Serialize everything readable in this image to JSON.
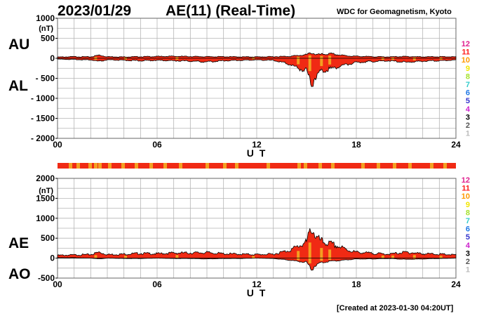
{
  "header": {
    "date": "2023/01/29",
    "title": "AE(11) (Real-Time)",
    "source": "WDC for Geomagnetism, Kyoto"
  },
  "footer": {
    "created": "[Created at 2023-01-30 04:20UT]"
  },
  "legend": {
    "labels": [
      "12",
      "11",
      "10",
      "9",
      "8",
      "7",
      "6",
      "5",
      "4",
      "3",
      "2",
      "1"
    ],
    "colors": [
      "#e0208f",
      "#ff1a1a",
      "#ff9900",
      "#f2e600",
      "#a6e22e",
      "#33cccc",
      "#1f78e6",
      "#3333cc",
      "#cc22cc",
      "#000000",
      "#555555",
      "#bbbbbb"
    ]
  },
  "colors": {
    "band_red": "#f02a14",
    "band_orange": "#f3a021",
    "fill_red": "#f02a14",
    "outline": "#000000"
  },
  "chart_data": [
    {
      "type": "area",
      "labels": {
        "upper": "AU",
        "lower": "AL"
      },
      "ylabel": "(nT)",
      "xlabel": "U T",
      "xlim": [
        0,
        24
      ],
      "ylim": [
        -2000,
        1000
      ],
      "xticks": [
        "00",
        "06",
        "12",
        "18",
        "24"
      ],
      "yticks": [
        "1000",
        "500",
        "0",
        "- 500",
        "- 1000",
        "- 1500",
        "- 2000"
      ],
      "grid": true,
      "series": [
        {
          "name": "AU",
          "x": [
            0,
            1,
            2,
            2.5,
            3,
            4,
            5,
            6,
            7,
            8,
            9,
            10,
            11,
            12,
            13,
            14,
            14.5,
            15,
            15.3,
            15.6,
            16,
            16.5,
            17,
            17.5,
            18,
            19,
            20,
            21,
            22,
            23,
            24
          ],
          "values": [
            30,
            40,
            35,
            80,
            40,
            35,
            40,
            45,
            50,
            45,
            40,
            40,
            35,
            35,
            40,
            50,
            70,
            90,
            140,
            90,
            100,
            110,
            80,
            60,
            50,
            40,
            35,
            45,
            35,
            40,
            35
          ]
        },
        {
          "name": "AL",
          "x": [
            0,
            1,
            2,
            2.5,
            3,
            4,
            5,
            6,
            7,
            8,
            9,
            10,
            11,
            12,
            13,
            14,
            14.5,
            15,
            15.3,
            15.6,
            16,
            16.5,
            17,
            17.5,
            18,
            19,
            20,
            21,
            22,
            23,
            24
          ],
          "values": [
            -20,
            -30,
            -40,
            -80,
            -40,
            -50,
            -60,
            -50,
            -60,
            -70,
            -90,
            -60,
            -50,
            -40,
            -50,
            -150,
            -250,
            -300,
            -650,
            -400,
            -300,
            -250,
            -200,
            -150,
            -100,
            -80,
            -60,
            -100,
            -70,
            -60,
            -40
          ]
        }
      ]
    },
    {
      "type": "area",
      "labels": {
        "upper": "AE",
        "lower": "AO"
      },
      "ylabel": "(nT)",
      "xlabel": "U T",
      "xlim": [
        0,
        24
      ],
      "ylim": [
        -500,
        2000
      ],
      "xticks": [
        "00",
        "06",
        "12",
        "18",
        "24"
      ],
      "yticks": [
        "2000",
        "1500",
        "1000",
        "500",
        "0",
        "-500"
      ],
      "grid": true,
      "series": [
        {
          "name": "AE",
          "x": [
            0,
            1,
            2,
            2.5,
            3,
            4,
            5,
            6,
            7,
            8,
            9,
            10,
            11,
            12,
            13,
            14,
            14.5,
            15,
            15.3,
            15.6,
            16,
            16.5,
            17,
            17.5,
            18,
            19,
            20,
            21,
            22,
            23,
            24
          ],
          "values": [
            70,
            80,
            90,
            150,
            90,
            100,
            120,
            110,
            130,
            130,
            140,
            110,
            100,
            90,
            100,
            200,
            300,
            400,
            780,
            500,
            400,
            350,
            280,
            200,
            150,
            120,
            100,
            150,
            110,
            100,
            80
          ]
        },
        {
          "name": "AO",
          "x": [
            0,
            1,
            2,
            2.5,
            3,
            4,
            5,
            6,
            7,
            8,
            9,
            10,
            11,
            12,
            13,
            14,
            14.5,
            15,
            15.3,
            15.6,
            16,
            16.5,
            17,
            17.5,
            18,
            19,
            20,
            21,
            22,
            23,
            24
          ],
          "values": [
            10,
            10,
            0,
            -20,
            0,
            -10,
            -10,
            0,
            -10,
            -10,
            -20,
            -10,
            -10,
            0,
            -10,
            -50,
            -80,
            -100,
            -280,
            -150,
            -100,
            -70,
            -60,
            -40,
            -20,
            -20,
            -10,
            -30,
            -20,
            -10,
            0
          ]
        }
      ]
    }
  ]
}
